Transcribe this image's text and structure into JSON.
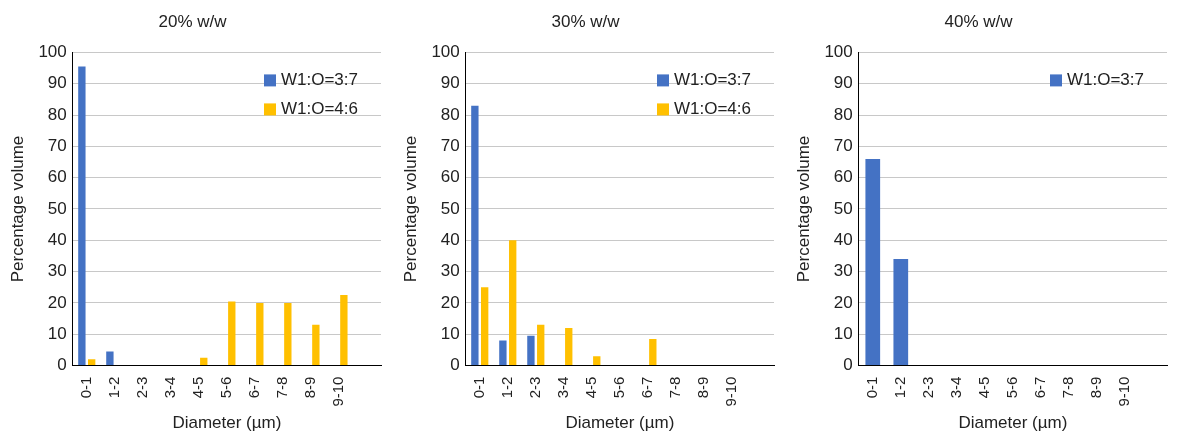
{
  "chart_data": [
    {
      "type": "bar",
      "title": "20% w/w",
      "xlabel": "Diameter (µm)",
      "ylabel": "Percentage volume",
      "categories": [
        "0-1",
        "1-2",
        "2-3",
        "3-4",
        "4-5",
        "5-6",
        "6-7",
        "7-8",
        "8-9",
        "9-10",
        null
      ],
      "series": [
        {
          "name": "W1:O=3:7",
          "color": "#4472c4",
          "values": [
            95.5,
            4.5,
            0,
            0,
            0,
            0,
            0,
            0,
            0,
            0,
            0
          ]
        },
        {
          "name": "W1:O=4:6",
          "color": "#ffc000",
          "values": [
            2,
            null,
            0,
            0,
            2.5,
            20.5,
            20,
            20,
            13,
            22.5,
            0
          ]
        }
      ],
      "ylim": [
        0,
        100
      ],
      "yticks": [
        0,
        10,
        20,
        30,
        40,
        50,
        60,
        70,
        80,
        90,
        100
      ],
      "grid": "y",
      "legend": "top right"
    },
    {
      "type": "bar",
      "title": "30% w/w",
      "xlabel": "Diameter (µm)",
      "ylabel": "Percentage volume",
      "categories": [
        "0-1",
        "1-2",
        "2-3",
        "3-4",
        "4-5",
        "5-6",
        "6-7",
        "7-8",
        "8-9",
        "9-10",
        null
      ],
      "series": [
        {
          "name": "W1:O=3:7",
          "color": "#4472c4",
          "values": [
            83,
            8,
            9.5,
            0,
            0,
            0,
            0,
            0,
            0,
            0,
            0
          ]
        },
        {
          "name": "W1:O=4:6",
          "color": "#ffc000",
          "values": [
            25,
            40,
            13,
            12,
            3,
            0,
            8.5,
            0,
            0,
            0,
            0
          ]
        }
      ],
      "ylim": [
        0,
        100
      ],
      "yticks": [
        0,
        10,
        20,
        30,
        40,
        50,
        60,
        70,
        80,
        90,
        100
      ],
      "grid": "y",
      "legend": "top right"
    },
    {
      "type": "bar",
      "title": "40% w/w",
      "xlabel": "Diameter (µm)",
      "ylabel": "Percentage volume",
      "categories": [
        "0-1",
        "1-2",
        "2-3",
        "3-4",
        "4-5",
        "5-6",
        "6-7",
        "7-8",
        "8-9",
        "9-10",
        null
      ],
      "series": [
        {
          "name": "W1:O=3:7",
          "color": "#4472c4",
          "values": [
            66,
            34,
            0,
            0,
            0,
            0,
            0,
            0,
            0,
            0,
            0
          ]
        }
      ],
      "ylim": [
        0,
        100
      ],
      "yticks": [
        0,
        10,
        20,
        30,
        40,
        50,
        60,
        70,
        80,
        90,
        100
      ],
      "grid": "y",
      "legend": "top right"
    }
  ]
}
